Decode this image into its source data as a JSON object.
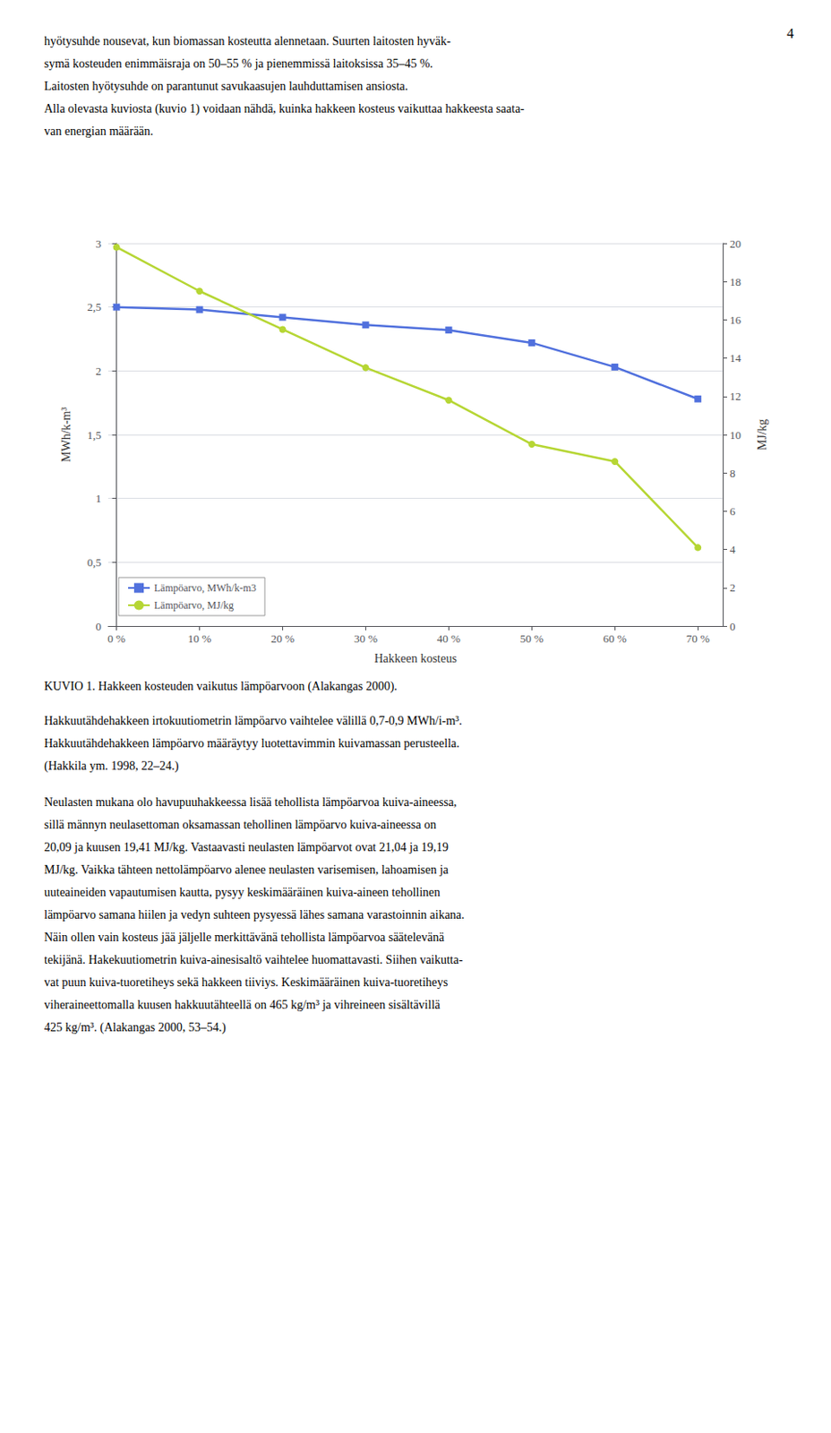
{
  "chart_data": {
    "type": "line",
    "title": "KUVIO 1. Hakkeen kosteuden vaikutus lämpöarvoon (Alakangas 2000).",
    "xlabel": "Hakkeen kosteus",
    "ylabel": "MWh/k-m³",
    "y2label": "MJ/kg",
    "x": [
      0,
      10,
      20,
      30,
      40,
      50,
      60,
      70
    ],
    "series": [
      {
        "name": "Lämpöarvo, MWh/k-m3",
        "values": [
          2.5,
          2.48,
          2.42,
          2.36,
          2.32,
          2.22,
          2.03,
          1.78
        ],
        "marker": "square"
      },
      {
        "name": "Lämpöarvo, MJ/kg",
        "values": [
          19.8,
          17.5,
          15.5,
          13.5,
          11.8,
          9.5,
          8.6,
          4.1
        ],
        "marker": "circle",
        "axis": "y2"
      }
    ],
    "xlim": [
      -1,
      73
    ],
    "xticks": [
      {
        "value": 0,
        "label": "0 %"
      },
      {
        "value": 10,
        "label": "10 %"
      },
      {
        "value": 20,
        "label": "20 %"
      },
      {
        "value": 30,
        "label": "30 %"
      },
      {
        "value": 40,
        "label": "40 %"
      },
      {
        "value": 50,
        "label": "50 %"
      },
      {
        "value": 60,
        "label": "60 %"
      },
      {
        "value": 70,
        "label": "70 %"
      }
    ],
    "ylim": [
      0,
      3
    ],
    "yticks": [
      0,
      {
        "value": 0.5,
        "label": "0,5"
      },
      1,
      {
        "value": 1.5,
        "label": "1,5"
      },
      2,
      {
        "value": 2.5,
        "label": "2,5"
      },
      3
    ],
    "y2lim": [
      0,
      20
    ],
    "y2ticks": [
      0,
      2,
      4,
      6,
      8,
      10,
      12,
      14,
      16,
      18,
      20
    ],
    "grid": true,
    "legend": "lower left",
    "annotations": {
      "page_number": "4",
      "text_above": [
        "hyötysuhde nousevat, kun biomassan kosteutta alennetaan. Suurten laitosten hyväk-",
        "symä kosteuden enimmäisraja on 50–55 % ja pienemmissä laitoksissa 35–45 %.",
        "Laitosten hyötysuhde on parantunut savukaasujen lauhduttamisen ansiosta.",
        "Alla olevasta kuviosta (kuvio 1) voidaan nähdä, kuinka hakkeen kosteus vaikuttaa hakkeesta saata-",
        "van energian määrään."
      ],
      "text_below": [
        [
          "Hakkuutähdehakkeen irtokuutiometrin lämpöarvo vaihtelee välillä 0,7-0,9 MWh/i-m³.",
          "Hakkuutähdehakkeen lämpöarvo määräytyy luotettavimmin kuivamassan perusteella.",
          "(Hakkila ym. 1998, 22–24.)"
        ],
        [
          "Neulasten mukana olo havupuuhakkeessa lisää tehollista lämpöarvoa kuiva-aineessa,",
          "sillä männyn neulasettoman oksamassan tehollinen lämpöarvo kuiva-aineessa on",
          "20,09 ja kuusen 19,41 MJ/kg. Vastaavasti neulasten lämpöarvot ovat 21,04 ja 19,19",
          "MJ/kg. Vaikka tähteen nettolämpöarvo alenee neulasten varisemisen, lahoamisen ja",
          "uuteaineiden vapautumisen kautta, pysyy keskimääräinen kuiva-aineen tehollinen",
          "lämpöarvo samana hiilen ja vedyn suhteen pysyessä lähes samana varastoinnin aikana.",
          "Näin ollen vain kosteus jää jäljelle merkittävänä tehollista lämpöarvoa säätelevänä",
          "tekijänä. Hakekuutiometrin kuiva-ainesisaltö vaihtelee huomattavasti. Siihen vaikutta-",
          "vat puun kuiva-tuoretiheys sekä hakkeen tiiviys. Keskimääräinen kuiva-tuoretiheys",
          "viheraineettomalla kuusen hakkuutähteellä on 465 kg/m³ ja vihreineen sisältävillä",
          "425 kg/m³. (Alakangas 2000, 53–54.)"
        ]
      ]
    }
  }
}
